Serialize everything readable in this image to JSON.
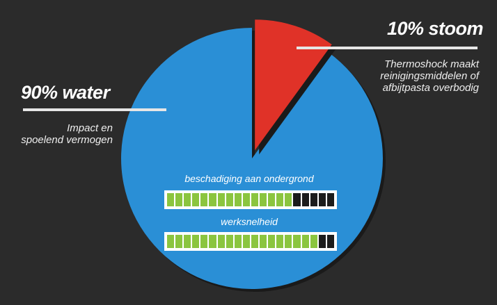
{
  "chart_data": {
    "type": "pie",
    "slices": [
      {
        "label": "90% water",
        "value": 90,
        "color": "#2a8fd6",
        "description": [
          "Impact en",
          "spoelend vermogen"
        ]
      },
      {
        "label": "10% stoom",
        "value": 10,
        "color": "#e03228",
        "description": [
          "Thermoshock maakt",
          "reinigingsmiddelen of",
          "afbijtpasta overbodig"
        ]
      }
    ],
    "meters": [
      {
        "label": "beschadiging aan ondergrond",
        "segments_total": 20,
        "segments_filled": 15,
        "fill_color": "#8bc53f",
        "empty_color": "#1c1c1c"
      },
      {
        "label": "werksnelheid",
        "segments_total": 20,
        "segments_filled": 18,
        "fill_color": "#8bc53f",
        "empty_color": "#1c1c1c"
      }
    ]
  },
  "background_color": "#2b2b2b"
}
